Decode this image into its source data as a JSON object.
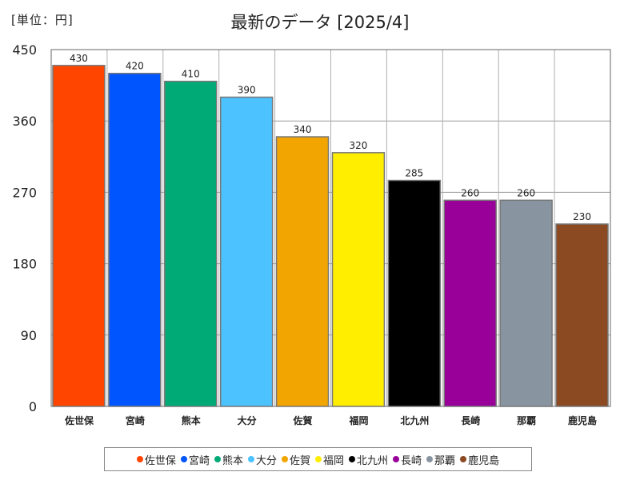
{
  "unit_label": "[単位：円]",
  "chart_data": {
    "type": "bar",
    "title": "最新のデータ [2025/4]",
    "categories": [
      "佐世保",
      "宮崎",
      "熊本",
      "大分",
      "佐賀",
      "福岡",
      "北九州",
      "長崎",
      "那覇",
      "鹿児島"
    ],
    "values": [
      430,
      420,
      410,
      390,
      340,
      320,
      285,
      260,
      260,
      230
    ],
    "colors": [
      "#ff4500",
      "#0055ff",
      "#00aa77",
      "#4cc3ff",
      "#f2a500",
      "#ffee00",
      "#000000",
      "#990099",
      "#8895a0",
      "#8b4a22"
    ],
    "ylim": [
      0,
      450
    ],
    "yticks": [
      0,
      90,
      180,
      270,
      360,
      450
    ],
    "xlabel": "",
    "ylabel": "",
    "grid": true,
    "legend_position": "bottom"
  }
}
